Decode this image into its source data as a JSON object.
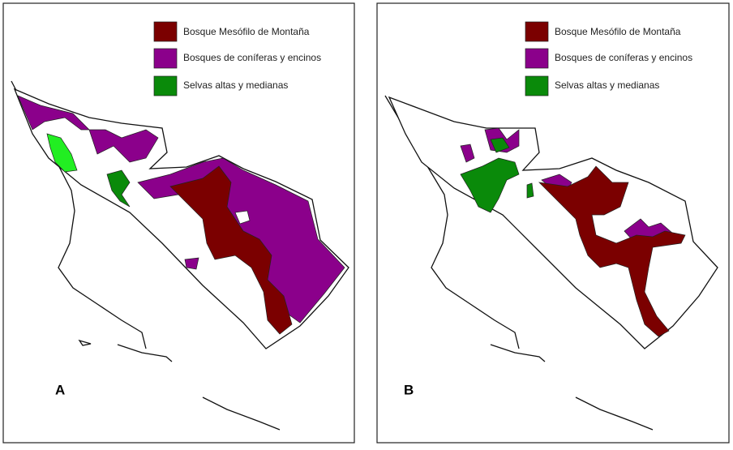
{
  "panels": [
    {
      "label": "A",
      "legend": [
        "Bosque Mesófilo de Montaña",
        "Bosques de coníferas y encinos",
        "Selvas altas y medianas"
      ]
    },
    {
      "label": "B",
      "legend": [
        "Bosque Mesófilo de Montaña",
        "Bosques de coníferas y encinos",
        "Selvas altas y medianas"
      ]
    }
  ]
}
